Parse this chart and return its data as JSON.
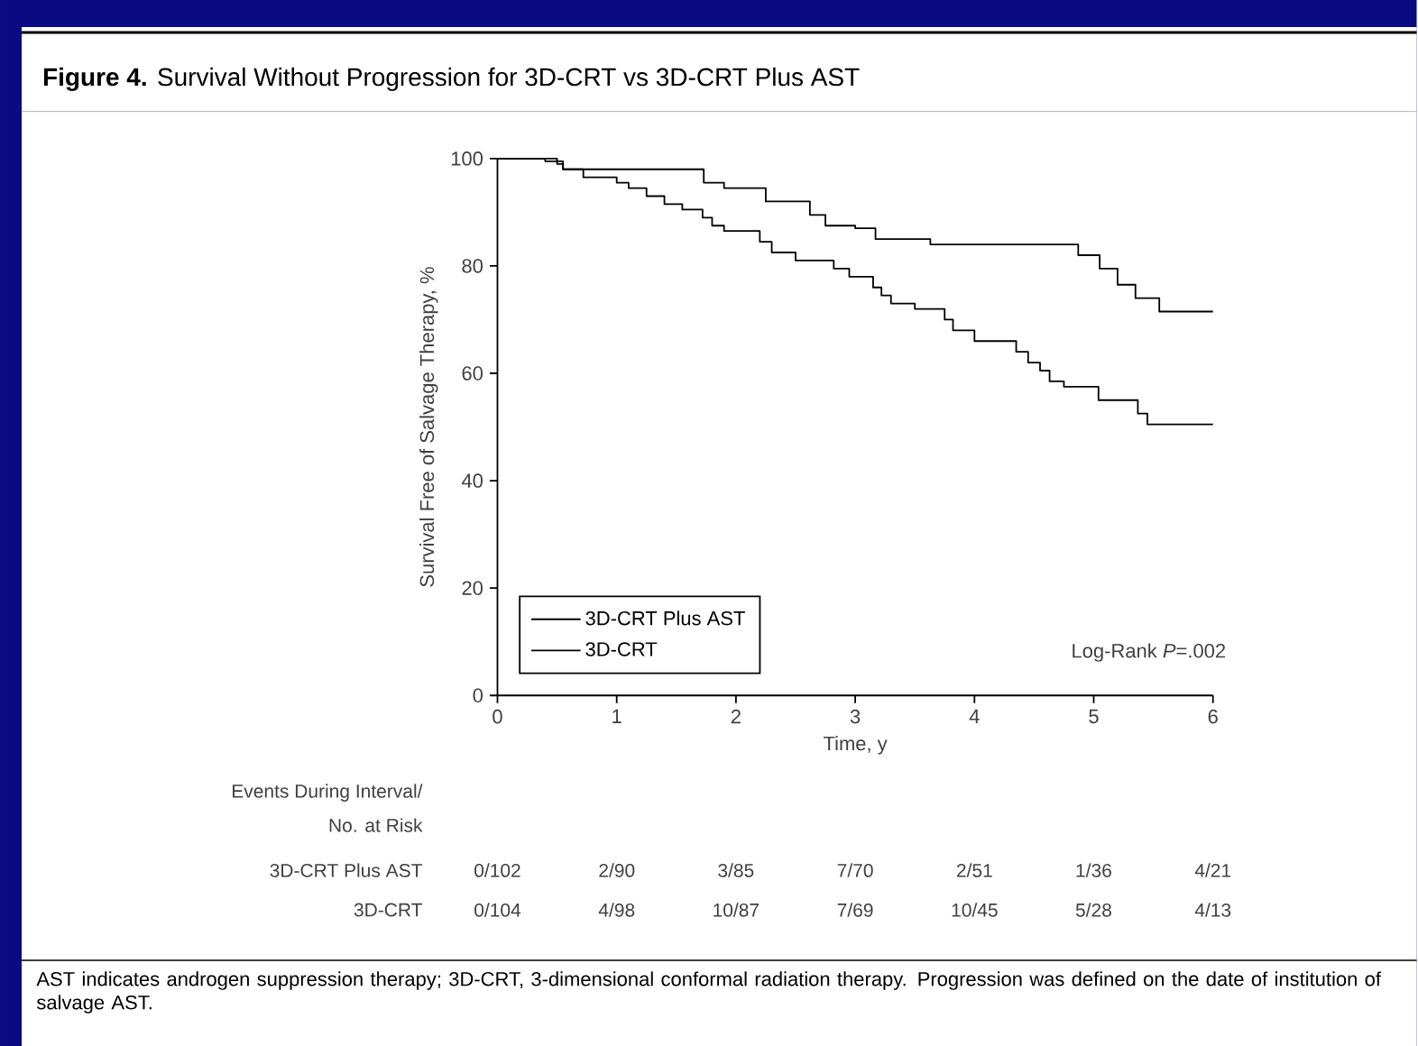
{
  "chart_data": {
    "type": "step",
    "title": "**Figure 4.** Survival Without Progression for 3D-CRT vs 3D-CRT Plus AST",
    "xlabel": "Time, y",
    "ylabel": "Survival Free of Salvage Therapy, %",
    "xlim": [
      0,
      6
    ],
    "ylim": [
      0,
      100
    ],
    "xticks": [
      0,
      1,
      2,
      3,
      4,
      5,
      6
    ],
    "yticks": [
      0,
      20,
      40,
      60,
      80,
      100
    ],
    "legend": "bottom left",
    "series": [
      {
        "name": "3D-CRT Plus AST",
        "color": "#000000",
        "x": [
          0,
          0.4,
          0.55,
          1.73,
          1.9,
          2.25,
          2.62,
          2.75,
          3.0,
          3.17,
          3.63,
          4.87,
          5.05,
          5.2,
          5.35,
          5.55,
          6
        ],
        "values": [
          100,
          99.5,
          98,
          95.5,
          94.5,
          92,
          89.5,
          87.5,
          87,
          85,
          84,
          82,
          79.5,
          76.5,
          74,
          71.5,
          71.5
        ]
      },
      {
        "name": "3D-CRT",
        "color": "#000000",
        "x": [
          0,
          0.5,
          0.55,
          0.72,
          1.0,
          1.1,
          1.25,
          1.4,
          1.55,
          1.72,
          1.8,
          1.9,
          2.2,
          2.3,
          2.5,
          2.82,
          2.95,
          3.15,
          3.22,
          3.3,
          3.5,
          3.75,
          3.82,
          4.0,
          4.35,
          4.45,
          4.55,
          4.63,
          4.75,
          5.04,
          5.37,
          5.45,
          6
        ],
        "values": [
          100,
          99,
          98,
          96.5,
          95.5,
          94.5,
          93,
          91.5,
          90.5,
          89,
          87.5,
          86.5,
          84.5,
          82.5,
          81,
          79.5,
          78,
          76,
          74.5,
          73,
          72,
          70,
          68,
          66,
          64,
          62,
          60.5,
          58.5,
          57.5,
          55,
          52.5,
          50.5,
          50.5
        ]
      }
    ],
    "annotations": [
      "Log-Rank *P*=.002",
      "Events During Interval/",
      "No. at Risk",
      "3D-CRT Plus AST",
      "0/102",
      "2/90",
      "3/85",
      "7/70",
      "2/51",
      "1/36",
      "4/21",
      "3D-CRT",
      "0/104",
      "4/98",
      "10/87",
      "7/69",
      "10/45",
      "5/28",
      "4/13",
      "AST indicates androgen suppression therapy; 3D-CRT, 3-dimensional conformal radiation therapy. Progression was defined on the date of institution of salvage AST."
    ]
  }
}
